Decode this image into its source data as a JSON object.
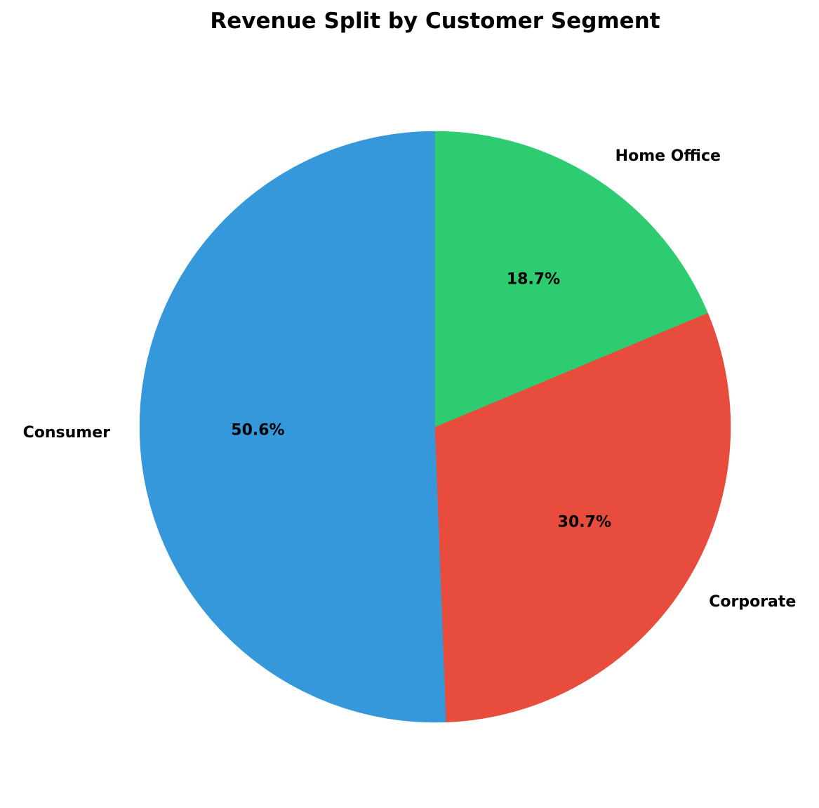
{
  "chart_data": {
    "type": "pie",
    "title": "Revenue Split by Customer Segment",
    "start_angle_deg": 90,
    "direction": "counterclockwise",
    "slices": [
      {
        "label": "Consumer",
        "value": 50.6,
        "pct_label": "50.6%",
        "color": "#3498db"
      },
      {
        "label": "Corporate",
        "value": 30.7,
        "pct_label": "30.7%",
        "color": "#e74c3c"
      },
      {
        "label": "Home Office",
        "value": 18.7,
        "pct_label": "18.7%",
        "color": "#2ecc71"
      }
    ]
  }
}
